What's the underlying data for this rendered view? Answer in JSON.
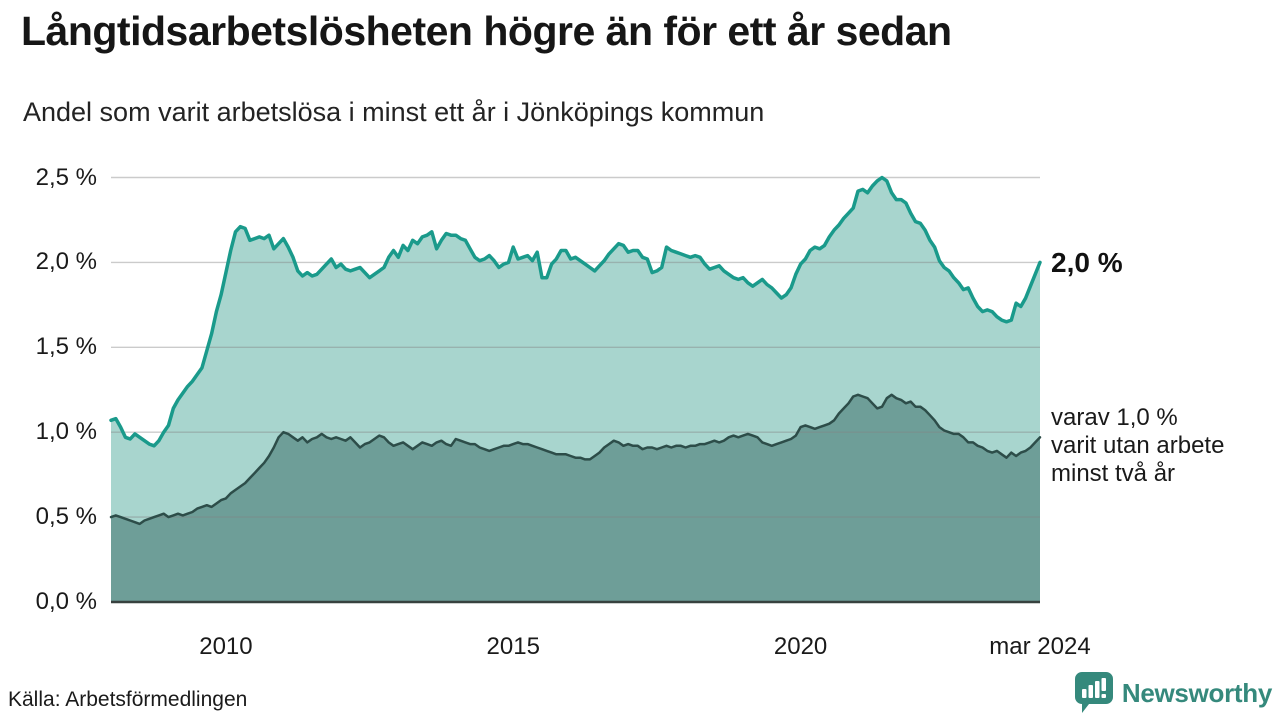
{
  "header": {
    "title": "Långtidsarbetslösheten högre än för ett år sedan",
    "subtitle": "Andel som varit arbetslösa i minst ett år i Jönköpings kommun"
  },
  "chart_data": {
    "type": "area",
    "unit": "%",
    "frequency": "monthly",
    "x_start": "2008-01",
    "x_end": "2024-03",
    "ylim": [
      0,
      2.5
    ],
    "grid": true,
    "y_ticks": [
      {
        "label": "0,0 %",
        "value": 0.0
      },
      {
        "label": "0,5 %",
        "value": 0.5
      },
      {
        "label": "1,0 %",
        "value": 1.0
      },
      {
        "label": "1,5 %",
        "value": 1.5
      },
      {
        "label": "2,0 %",
        "value": 2.0
      },
      {
        "label": "2,5 %",
        "value": 2.5
      }
    ],
    "x_ticks": [
      {
        "label": "2010",
        "month_index": 24
      },
      {
        "label": "2015",
        "month_index": 84
      },
      {
        "label": "2020",
        "month_index": 144
      },
      {
        "label": "mar 2024",
        "month_index": 194
      }
    ],
    "series": [
      {
        "name": "Andel som varit arbetslösa i minst ett år",
        "color": "#1a9a8b",
        "fill": "#a8d5ce",
        "line_width": 3.5,
        "latest_value": 2.0,
        "values": [
          1.07,
          1.08,
          1.03,
          0.97,
          0.96,
          0.99,
          0.97,
          0.95,
          0.93,
          0.92,
          0.95,
          1.0,
          1.04,
          1.14,
          1.19,
          1.23,
          1.27,
          1.3,
          1.34,
          1.38,
          1.48,
          1.58,
          1.71,
          1.81,
          1.94,
          2.07,
          2.18,
          2.21,
          2.2,
          2.13,
          2.14,
          2.15,
          2.14,
          2.16,
          2.08,
          2.11,
          2.14,
          2.09,
          2.03,
          1.95,
          1.92,
          1.94,
          1.92,
          1.93,
          1.96,
          1.99,
          2.02,
          1.97,
          1.99,
          1.96,
          1.95,
          1.96,
          1.97,
          1.94,
          1.91,
          1.93,
          1.95,
          1.97,
          2.03,
          2.07,
          2.03,
          2.1,
          2.07,
          2.13,
          2.11,
          2.15,
          2.16,
          2.18,
          2.08,
          2.13,
          2.17,
          2.16,
          2.16,
          2.14,
          2.13,
          2.08,
          2.03,
          2.01,
          2.02,
          2.04,
          2.01,
          1.97,
          1.99,
          2.0,
          2.09,
          2.02,
          2.03,
          2.04,
          2.01,
          2.06,
          1.91,
          1.91,
          1.99,
          2.02,
          2.07,
          2.07,
          2.02,
          2.03,
          2.01,
          1.99,
          1.97,
          1.95,
          1.98,
          2.01,
          2.05,
          2.08,
          2.11,
          2.1,
          2.06,
          2.07,
          2.07,
          2.03,
          2.02,
          1.94,
          1.95,
          1.97,
          2.09,
          2.07,
          2.06,
          2.05,
          2.04,
          2.03,
          2.04,
          2.03,
          1.99,
          1.96,
          1.97,
          1.98,
          1.95,
          1.93,
          1.91,
          1.9,
          1.91,
          1.88,
          1.86,
          1.88,
          1.9,
          1.87,
          1.85,
          1.82,
          1.79,
          1.81,
          1.85,
          1.93,
          1.99,
          2.02,
          2.07,
          2.09,
          2.08,
          2.1,
          2.15,
          2.19,
          2.22,
          2.26,
          2.29,
          2.32,
          2.42,
          2.43,
          2.41,
          2.45,
          2.48,
          2.5,
          2.48,
          2.41,
          2.37,
          2.37,
          2.35,
          2.29,
          2.24,
          2.23,
          2.19,
          2.13,
          2.09,
          2.01,
          1.97,
          1.95,
          1.91,
          1.88,
          1.84,
          1.85,
          1.79,
          1.74,
          1.71,
          1.72,
          1.71,
          1.68,
          1.66,
          1.65,
          1.66,
          1.76,
          1.74,
          1.79,
          1.86,
          1.93,
          2.0
        ]
      },
      {
        "name": "varav utan arbete minst två år",
        "color": "#2d4d49",
        "fill": "#6e9e98",
        "line_width": 2.5,
        "latest_value": 1.0,
        "values": [
          0.5,
          0.51,
          0.5,
          0.49,
          0.48,
          0.47,
          0.46,
          0.48,
          0.49,
          0.5,
          0.51,
          0.52,
          0.5,
          0.51,
          0.52,
          0.51,
          0.52,
          0.53,
          0.55,
          0.56,
          0.57,
          0.56,
          0.58,
          0.6,
          0.61,
          0.64,
          0.66,
          0.68,
          0.7,
          0.73,
          0.76,
          0.79,
          0.82,
          0.86,
          0.91,
          0.97,
          1.0,
          0.99,
          0.97,
          0.95,
          0.97,
          0.94,
          0.96,
          0.97,
          0.99,
          0.97,
          0.96,
          0.97,
          0.96,
          0.95,
          0.97,
          0.94,
          0.91,
          0.93,
          0.94,
          0.96,
          0.98,
          0.97,
          0.94,
          0.92,
          0.93,
          0.94,
          0.92,
          0.9,
          0.92,
          0.94,
          0.93,
          0.92,
          0.94,
          0.95,
          0.93,
          0.92,
          0.96,
          0.95,
          0.94,
          0.93,
          0.93,
          0.91,
          0.9,
          0.89,
          0.9,
          0.91,
          0.92,
          0.92,
          0.93,
          0.94,
          0.93,
          0.93,
          0.92,
          0.91,
          0.9,
          0.89,
          0.88,
          0.87,
          0.87,
          0.87,
          0.86,
          0.85,
          0.85,
          0.84,
          0.84,
          0.86,
          0.88,
          0.91,
          0.93,
          0.95,
          0.94,
          0.92,
          0.93,
          0.92,
          0.92,
          0.9,
          0.91,
          0.91,
          0.9,
          0.91,
          0.92,
          0.91,
          0.92,
          0.92,
          0.91,
          0.92,
          0.92,
          0.93,
          0.93,
          0.94,
          0.95,
          0.94,
          0.95,
          0.97,
          0.98,
          0.97,
          0.98,
          0.99,
          0.98,
          0.97,
          0.94,
          0.93,
          0.92,
          0.93,
          0.94,
          0.95,
          0.96,
          0.98,
          1.03,
          1.04,
          1.03,
          1.02,
          1.03,
          1.04,
          1.05,
          1.07,
          1.11,
          1.14,
          1.17,
          1.21,
          1.22,
          1.21,
          1.2,
          1.17,
          1.14,
          1.15,
          1.2,
          1.22,
          1.2,
          1.19,
          1.17,
          1.18,
          1.15,
          1.15,
          1.13,
          1.1,
          1.07,
          1.03,
          1.01,
          1.0,
          0.99,
          0.99,
          0.97,
          0.94,
          0.94,
          0.92,
          0.91,
          0.89,
          0.88,
          0.89,
          0.87,
          0.85,
          0.88,
          0.86,
          0.88,
          0.89,
          0.91,
          0.94,
          0.97
        ]
      }
    ]
  },
  "annotations": {
    "series1_end": "2,0 %",
    "series2_end_lines": [
      "varav 1,0 %",
      "varit utan arbete",
      "minst två år"
    ]
  },
  "source": "Källa: Arbetsförmedlingen",
  "logo": {
    "text": "Newsworthy",
    "color": "#35897c",
    "icon": "bar-chart-speech-bubble-icon"
  },
  "colors": {
    "grid": "#c9c9c9",
    "axis": "#37413f",
    "text": "#1a1a1a"
  }
}
